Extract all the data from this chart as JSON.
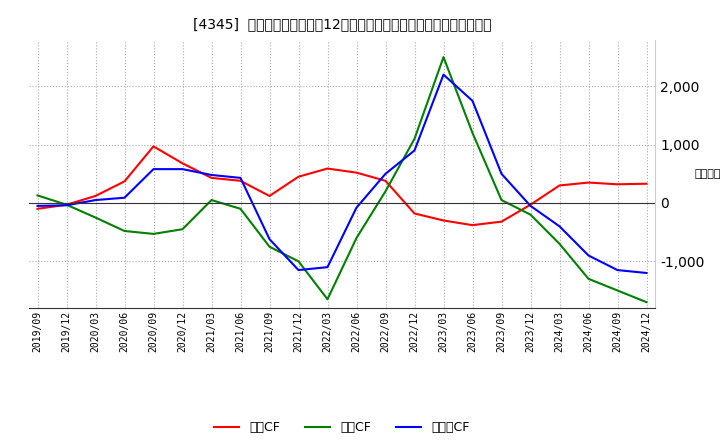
{
  "title": "[4345]  キャッシュフローの12か月移動合計の対前年同期増減額の推移",
  "ylabel": "（百万円）",
  "x_labels": [
    "2019/09",
    "2019/12",
    "2020/03",
    "2020/06",
    "2020/09",
    "2020/12",
    "2021/03",
    "2021/06",
    "2021/09",
    "2021/12",
    "2022/03",
    "2022/06",
    "2022/09",
    "2022/12",
    "2023/03",
    "2023/06",
    "2023/09",
    "2023/12",
    "2024/03",
    "2024/06",
    "2024/09",
    "2024/12"
  ],
  "operating_cf": [
    -100,
    -30,
    120,
    370,
    970,
    680,
    430,
    380,
    120,
    450,
    590,
    520,
    380,
    -180,
    -300,
    -380,
    -320,
    -30,
    300,
    350,
    320,
    330
  ],
  "investing_cf": [
    130,
    -30,
    -250,
    -480,
    -530,
    -450,
    50,
    -100,
    -750,
    -1000,
    -1650,
    -600,
    200,
    1100,
    2500,
    1200,
    50,
    -200,
    -700,
    -1300,
    -1500,
    -1700
  ],
  "free_cf": [
    -50,
    -40,
    50,
    90,
    580,
    580,
    480,
    430,
    -620,
    -1150,
    -1100,
    -80,
    500,
    900,
    2200,
    1750,
    500,
    -50,
    -400,
    -900,
    -1150,
    -1200
  ],
  "operating_color": "#ff0000",
  "investing_color": "#008000",
  "free_color": "#0000ff",
  "background_color": "#ffffff",
  "grid_color": "#aaaaaa",
  "ylim_min": -1800,
  "ylim_max": 2800,
  "yticks": [
    -1000,
    0,
    1000,
    2000
  ],
  "legend_labels": [
    "営業CF",
    "投資CF",
    "フリーCF"
  ]
}
